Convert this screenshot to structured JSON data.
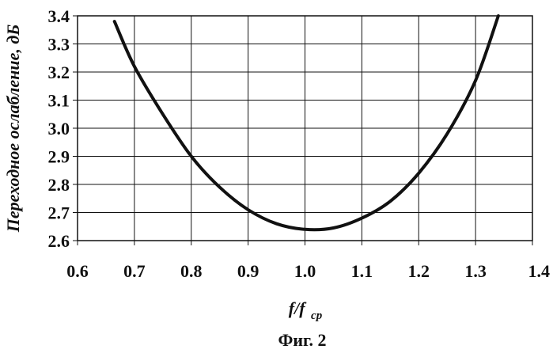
{
  "chart_data": {
    "type": "line",
    "xlabel": "f/f",
    "xlabel_sub": "ср",
    "ylabel": "Переходное ослабление, дБ",
    "caption": "Фиг. 2",
    "xlim": [
      0.6,
      1.4
    ],
    "ylim": [
      2.6,
      3.4
    ],
    "x_ticks": [
      "0.6",
      "0.7",
      "0.8",
      "0.9",
      "1.0",
      "1.1",
      "1.2",
      "1.3",
      "1.4"
    ],
    "y_ticks": [
      "2.6",
      "2.7",
      "2.8",
      "2.9",
      "3.0",
      "3.1",
      "3.2",
      "3.3",
      "3.4"
    ],
    "grid": true,
    "series": [
      {
        "x": [
          0.665,
          0.7,
          0.75,
          0.8,
          0.85,
          0.9,
          0.95,
          1.0,
          1.05,
          1.1,
          1.15,
          1.2,
          1.25,
          1.3,
          1.34
        ],
        "y": [
          3.38,
          3.22,
          3.05,
          2.9,
          2.79,
          2.71,
          2.66,
          2.64,
          2.645,
          2.68,
          2.74,
          2.84,
          2.98,
          3.17,
          3.4
        ]
      }
    ]
  }
}
